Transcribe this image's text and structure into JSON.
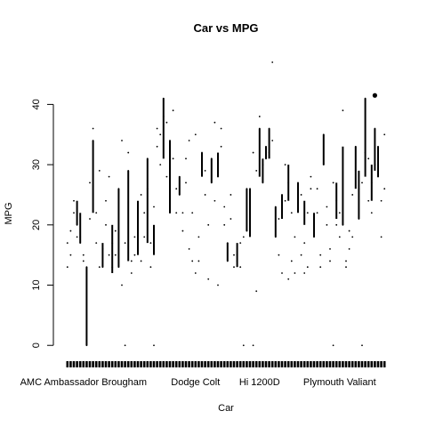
{
  "chart_data": {
    "type": "scatter",
    "title": "Car vs MPG",
    "xlabel": "Car",
    "ylabel": "MPG",
    "ylim": [
      -1,
      47
    ],
    "yticks": [
      0,
      10,
      20,
      30,
      40
    ],
    "xtick_labels_shown": [
      {
        "label": "AMC Ambassador Brougham",
        "index": 5
      },
      {
        "label": "Dodge Colt",
        "index": 40
      },
      {
        "label": "Hi 1200D",
        "index": 60
      },
      {
        "label": "Plymouth Valiant",
        "index": 85
      }
    ],
    "category_count": 100,
    "grid": false,
    "points": [
      [
        0,
        13
      ],
      [
        0,
        17
      ],
      [
        1,
        15
      ],
      [
        1,
        19
      ],
      [
        2,
        22
      ],
      [
        2,
        24
      ],
      [
        3,
        20
      ],
      [
        3,
        18
      ],
      [
        4,
        18
      ],
      [
        4,
        17
      ],
      [
        5,
        15
      ],
      [
        5,
        14
      ],
      [
        6,
        0
      ],
      [
        6,
        13
      ],
      [
        7,
        27
      ],
      [
        7,
        21
      ],
      [
        8,
        34
      ],
      [
        8,
        36
      ],
      [
        9,
        22
      ],
      [
        9,
        17
      ],
      [
        10,
        29
      ],
      [
        10,
        13
      ],
      [
        11,
        13
      ],
      [
        11,
        16
      ],
      [
        12,
        20
      ],
      [
        12,
        24
      ],
      [
        13,
        28
      ],
      [
        13,
        15
      ],
      [
        14,
        17
      ],
      [
        14,
        13
      ],
      [
        15,
        15
      ],
      [
        15,
        19
      ],
      [
        16,
        26
      ],
      [
        16,
        13
      ],
      [
        17,
        34
      ],
      [
        17,
        10
      ],
      [
        18,
        0
      ],
      [
        18,
        17
      ],
      [
        19,
        29
      ],
      [
        19,
        32
      ],
      [
        20,
        14
      ],
      [
        20,
        12
      ],
      [
        21,
        18
      ],
      [
        21,
        15
      ],
      [
        22,
        20
      ],
      [
        22,
        16
      ],
      [
        23,
        25
      ],
      [
        23,
        14
      ],
      [
        24,
        22
      ],
      [
        24,
        18
      ],
      [
        25,
        31
      ],
      [
        25,
        26
      ],
      [
        26,
        17
      ],
      [
        26,
        13
      ],
      [
        27,
        23
      ],
      [
        27,
        0
      ],
      [
        28,
        33
      ],
      [
        28,
        36
      ],
      [
        29,
        35
      ],
      [
        29,
        30
      ],
      [
        30,
        41
      ],
      [
        30,
        38
      ],
      [
        31,
        28
      ],
      [
        31,
        37
      ],
      [
        32,
        22
      ],
      [
        32,
        34
      ],
      [
        33,
        31
      ],
      [
        33,
        39
      ],
      [
        34,
        26
      ],
      [
        34,
        22
      ],
      [
        35,
        25
      ],
      [
        35,
        28
      ],
      [
        36,
        19
      ],
      [
        36,
        22
      ],
      [
        37,
        27
      ],
      [
        37,
        31
      ],
      [
        38,
        34
      ],
      [
        38,
        16
      ],
      [
        39,
        14
      ],
      [
        39,
        22
      ],
      [
        40,
        12
      ],
      [
        40,
        35
      ],
      [
        41,
        14
      ],
      [
        41,
        18
      ],
      [
        42,
        31
      ],
      [
        42,
        32
      ],
      [
        43,
        29
      ],
      [
        43,
        25
      ],
      [
        44,
        11
      ],
      [
        44,
        20
      ],
      [
        45,
        27
      ],
      [
        45,
        31
      ],
      [
        46,
        37
      ],
      [
        46,
        24
      ],
      [
        47,
        28
      ],
      [
        47,
        10
      ],
      [
        48,
        36
      ],
      [
        48,
        33
      ],
      [
        49,
        20
      ],
      [
        49,
        23
      ],
      [
        50,
        14
      ],
      [
        50,
        17
      ],
      [
        51,
        21
      ],
      [
        51,
        25
      ],
      [
        52,
        15
      ],
      [
        52,
        13
      ],
      [
        53,
        14
      ],
      [
        53,
        15
      ],
      [
        54,
        17
      ],
      [
        54,
        13
      ],
      [
        55,
        0
      ],
      [
        55,
        18
      ],
      [
        56,
        19
      ],
      [
        56,
        26
      ],
      [
        57,
        26
      ],
      [
        57,
        21
      ],
      [
        58,
        0
      ],
      [
        58,
        32
      ],
      [
        59,
        9
      ],
      [
        59,
        29
      ],
      [
        60,
        36
      ],
      [
        60,
        38
      ],
      [
        61,
        30
      ],
      [
        61,
        27
      ],
      [
        62,
        33
      ],
      [
        62,
        31
      ],
      [
        63,
        36
      ],
      [
        63,
        32
      ],
      [
        64,
        47
      ],
      [
        64,
        34
      ],
      [
        65,
        23
      ],
      [
        65,
        18
      ],
      [
        66,
        21
      ],
      [
        66,
        15
      ],
      [
        67,
        25
      ],
      [
        67,
        12
      ],
      [
        68,
        30
      ],
      [
        68,
        24
      ],
      [
        69,
        27
      ],
      [
        69,
        11
      ],
      [
        70,
        22
      ],
      [
        70,
        14
      ],
      [
        71,
        18
      ],
      [
        71,
        12
      ],
      [
        72,
        24
      ],
      [
        72,
        27
      ],
      [
        73,
        25
      ],
      [
        73,
        15
      ],
      [
        74,
        17
      ],
      [
        74,
        12
      ],
      [
        75,
        13
      ],
      [
        75,
        22
      ],
      [
        76,
        28
      ],
      [
        76,
        26
      ],
      [
        77,
        21
      ],
      [
        77,
        18
      ],
      [
        78,
        26
      ],
      [
        78,
        22
      ],
      [
        79,
        15
      ],
      [
        79,
        13
      ],
      [
        80,
        35
      ],
      [
        80,
        30
      ],
      [
        81,
        23
      ],
      [
        81,
        20
      ],
      [
        82,
        16
      ],
      [
        82,
        14
      ],
      [
        83,
        0
      ],
      [
        83,
        27
      ],
      [
        84,
        20
      ],
      [
        84,
        24
      ],
      [
        85,
        22
      ],
      [
        85,
        18
      ],
      [
        86,
        39
      ],
      [
        86,
        20
      ],
      [
        87,
        14
      ],
      [
        87,
        13
      ],
      [
        88,
        16
      ],
      [
        88,
        19
      ],
      [
        89,
        18
      ],
      [
        89,
        25
      ],
      [
        90,
        33
      ],
      [
        90,
        29
      ],
      [
        91,
        21
      ],
      [
        91,
        26
      ],
      [
        92,
        27
      ],
      [
        92,
        0
      ],
      [
        93,
        32
      ],
      [
        93,
        41
      ],
      [
        94,
        31
      ],
      [
        94,
        24
      ],
      [
        95,
        22
      ],
      [
        95,
        27
      ],
      [
        96,
        36
      ],
      [
        96,
        30
      ],
      [
        97,
        33
      ],
      [
        97,
        28
      ],
      [
        98,
        24
      ],
      [
        98,
        18
      ],
      [
        99,
        26
      ],
      [
        99,
        35
      ]
    ],
    "whiskers": [
      [
        3,
        20,
        24
      ],
      [
        4,
        17,
        22
      ],
      [
        6,
        0,
        13
      ],
      [
        8,
        22,
        34
      ],
      [
        11,
        13,
        17
      ],
      [
        14,
        12,
        20
      ],
      [
        16,
        13,
        26
      ],
      [
        19,
        14,
        29
      ],
      [
        22,
        15,
        24
      ],
      [
        25,
        17,
        31
      ],
      [
        27,
        15,
        20
      ],
      [
        30,
        31,
        41
      ],
      [
        32,
        22,
        34
      ],
      [
        35,
        25,
        28
      ],
      [
        42,
        28,
        32
      ],
      [
        45,
        27,
        31
      ],
      [
        47,
        28,
        32
      ],
      [
        50,
        14,
        17
      ],
      [
        53,
        13,
        17
      ],
      [
        56,
        19,
        26
      ],
      [
        57,
        18,
        26
      ],
      [
        60,
        28,
        36
      ],
      [
        61,
        27,
        31
      ],
      [
        62,
        31,
        33
      ],
      [
        63,
        31,
        36
      ],
      [
        65,
        18,
        23
      ],
      [
        67,
        21,
        25
      ],
      [
        69,
        24,
        30
      ],
      [
        72,
        22,
        27
      ],
      [
        74,
        20,
        24
      ],
      [
        77,
        18,
        22
      ],
      [
        80,
        30,
        35
      ],
      [
        84,
        21,
        27
      ],
      [
        86,
        20,
        33
      ],
      [
        90,
        26,
        33
      ],
      [
        91,
        21,
        29
      ],
      [
        93,
        28,
        41
      ],
      [
        95,
        24,
        30
      ],
      [
        96,
        29,
        36
      ],
      [
        97,
        28,
        33
      ]
    ],
    "highlighted_point": [
      96,
      41.5
    ]
  }
}
